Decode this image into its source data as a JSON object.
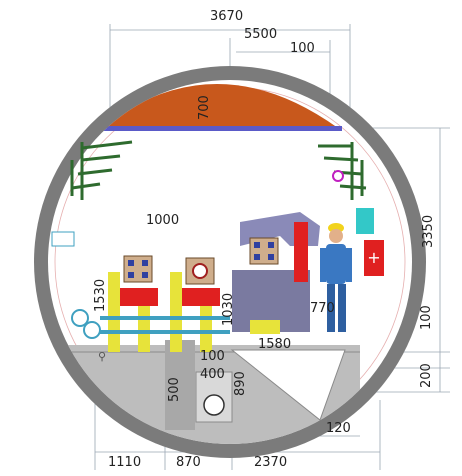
{
  "diagram": {
    "dimensions": {
      "outer_diameter": "3670",
      "inner_width": "5500",
      "shell_thickness": "100",
      "crown_height": "700",
      "segment_1000": "1000",
      "segment_1530": "1530",
      "segment_1030": "1030",
      "segment_770": "770",
      "segment_1580": "1580",
      "segment_100_mid": "100",
      "segment_400": "400",
      "segment_500": "500",
      "segment_890": "890",
      "segment_120": "120",
      "right_3350": "3350",
      "right_100": "100",
      "right_200": "200",
      "bottom_1110": "1110",
      "bottom_870": "870",
      "bottom_2370": "2370"
    },
    "colors": {
      "shell": "#7b7b7b",
      "crown": "#c8581c",
      "crown_bar": "#5a5ac8",
      "bracket": "#2e6b2e",
      "floor": "#bdbdbd",
      "equipment_yellow": "#e7e33a",
      "equipment_red": "#e02020",
      "pipe_blue": "#3fa0c0",
      "cyan": "#33c8c8",
      "worker_blue": "#3a78c2",
      "helmet_yellow": "#f2d31c"
    },
    "icons": [
      "tunnel-shell",
      "crown-segment",
      "cable-bracket",
      "worker-figure",
      "equipment-rack",
      "drain-pipe",
      "fire-extinguisher-box",
      "bicycle-icon"
    ]
  }
}
